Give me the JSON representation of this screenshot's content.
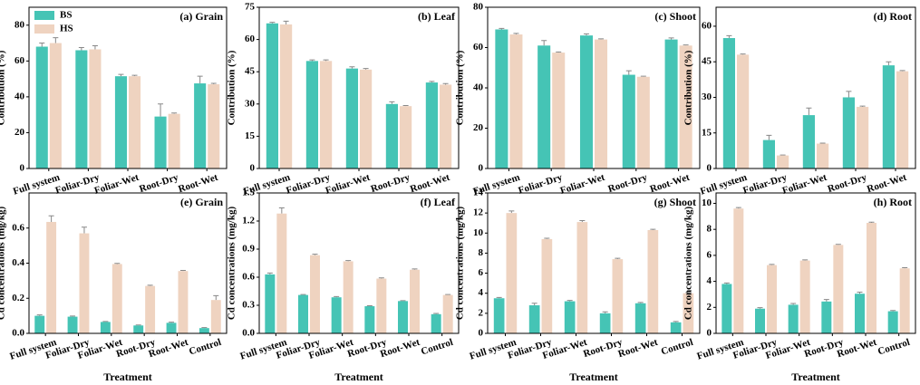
{
  "chart_data": [
    {
      "type": "bar",
      "title": "(a) Grain",
      "y_label": "Contribution (%)",
      "legend": "upper left",
      "categories": [
        "Full system",
        "Foliar-Dry",
        "Foliar-Wet",
        "Root-Dry",
        "Root-Wet"
      ],
      "series": [
        {
          "name": "BS",
          "color": "#45c4b5",
          "values": [
            68,
            66,
            51.5,
            29,
            47.5
          ],
          "errors": [
            2,
            1.5,
            1,
            7,
            4
          ]
        },
        {
          "name": "HS",
          "color": "#efd3c0",
          "values": [
            70,
            66.5,
            51.5,
            30.5,
            47
          ],
          "errors": [
            3,
            2,
            0.5,
            0.5,
            0.5
          ]
        }
      ],
      "ylim": [
        0,
        90
      ],
      "yticks": [
        0,
        20,
        40,
        60,
        80
      ]
    },
    {
      "type": "bar",
      "title": "(b) Leaf",
      "y_label": "Contribution (%)",
      "categories": [
        "Full system",
        "Foliar-Dry",
        "Foliar-Wet",
        "Root-Dry",
        "Root-Wet"
      ],
      "series": [
        {
          "name": "BS",
          "color": "#45c4b5",
          "values": [
            67.5,
            50,
            46.5,
            30,
            40
          ],
          "errors": [
            0.5,
            0.5,
            0.8,
            1,
            0.5
          ]
        },
        {
          "name": "HS",
          "color": "#efd3c0",
          "values": [
            67,
            50,
            46,
            29,
            39
          ],
          "errors": [
            1.5,
            0.5,
            0.5,
            0.3,
            0.5
          ]
        }
      ],
      "ylim": [
        0,
        75
      ],
      "yticks": [
        0,
        15,
        30,
        45,
        60,
        75
      ]
    },
    {
      "type": "bar",
      "title": "(c) Shoot",
      "y_label": "Contribution (%)",
      "categories": [
        "Full system",
        "Foliar-Dry",
        "Foliar-Wet",
        "Root-Dry",
        "Root-Wet"
      ],
      "series": [
        {
          "name": "BS",
          "color": "#45c4b5",
          "values": [
            69,
            61,
            66,
            46.5,
            64
          ],
          "errors": [
            0.5,
            2.5,
            0.8,
            2,
            0.8
          ]
        },
        {
          "name": "HS",
          "color": "#efd3c0",
          "values": [
            66.5,
            57.5,
            64,
            45.5,
            61
          ],
          "errors": [
            0.5,
            0.3,
            0.3,
            0.3,
            0.3
          ]
        }
      ],
      "ylim": [
        0,
        80
      ],
      "yticks": [
        0,
        20,
        40,
        60,
        80
      ]
    },
    {
      "type": "bar",
      "title": "(d) Root",
      "y_label": "Contribution (%)",
      "categories": [
        "Full system",
        "Foliar-Dry",
        "Foliar-Wet",
        "Root-Dry",
        "Root-Wet"
      ],
      "series": [
        {
          "name": "BS",
          "color": "#45c4b5",
          "values": [
            55,
            12,
            22.5,
            30,
            43.5
          ],
          "errors": [
            1,
            2,
            3,
            2.5,
            1.5
          ]
        },
        {
          "name": "HS",
          "color": "#efd3c0",
          "values": [
            48,
            5.5,
            10.5,
            26,
            41
          ],
          "errors": [
            0.3,
            0.2,
            0.2,
            0.3,
            0.3
          ]
        }
      ],
      "ylim": [
        0,
        68
      ],
      "yticks": [
        0,
        15,
        30,
        45,
        60
      ]
    },
    {
      "type": "bar",
      "title": "(e) Grain",
      "y_label": "Cd concentrations (mg/kg)",
      "x_label": "Treatment",
      "categories": [
        "Full system",
        "Foliar-Dry",
        "Foliar-Wet",
        "Root-Dry",
        "Root-Wet",
        "Control"
      ],
      "series": [
        {
          "name": "BS",
          "color": "#45c4b5",
          "values": [
            0.1,
            0.095,
            0.065,
            0.045,
            0.06,
            0.03
          ],
          "errors": [
            0.005,
            0.004,
            0.003,
            0.003,
            0.004,
            0.003
          ]
        },
        {
          "name": "HS",
          "color": "#efd3c0",
          "values": [
            0.635,
            0.57,
            0.395,
            0.27,
            0.355,
            0.19
          ],
          "errors": [
            0.035,
            0.035,
            0.004,
            0.004,
            0.004,
            0.025
          ]
        }
      ],
      "ylim": [
        0,
        0.8
      ],
      "yticks": [
        {
          "value": 0,
          "label": "0.0"
        },
        0.2,
        0.4,
        0.6
      ]
    },
    {
      "type": "bar",
      "title": "(f) Leaf",
      "y_label": "Cd concentrations (mg/kg)",
      "x_label": "Treatment",
      "categories": [
        "Full system",
        "Foliar-Dry",
        "Foliar-Wet",
        "Root-Dry",
        "Root-Wet",
        "Control"
      ],
      "series": [
        {
          "name": "BS",
          "color": "#45c4b5",
          "values": [
            0.63,
            0.41,
            0.385,
            0.29,
            0.345,
            0.205
          ],
          "errors": [
            0.015,
            0.005,
            0.008,
            0.005,
            0.005,
            0.008
          ]
        },
        {
          "name": "HS",
          "color": "#efd3c0",
          "values": [
            1.28,
            0.835,
            0.77,
            0.585,
            0.68,
            0.41
          ],
          "errors": [
            0.06,
            0.01,
            0.008,
            0.008,
            0.008,
            0.005
          ]
        }
      ],
      "ylim": [
        0,
        1.5
      ],
      "yticks": [
        {
          "value": 0,
          "label": "0.0"
        },
        0.3,
        0.6,
        0.9,
        1.2,
        1.5
      ]
    },
    {
      "type": "bar",
      "title": "(g) Shoot",
      "y_label": "Cd concentrations (mg/kg)",
      "x_label": "Treatment",
      "categories": [
        "Full system",
        "Foliar-Dry",
        "Foliar-Wet",
        "Root-Dry",
        "Root-Wet",
        "Control"
      ],
      "series": [
        {
          "name": "BS",
          "color": "#45c4b5",
          "values": [
            3.5,
            2.8,
            3.2,
            2.0,
            3.0,
            1.1
          ],
          "errors": [
            0.08,
            0.2,
            0.08,
            0.15,
            0.08,
            0.08
          ]
        },
        {
          "name": "HS",
          "color": "#efd3c0",
          "values": [
            12,
            9.4,
            11.1,
            7.4,
            10.3,
            4.0
          ],
          "errors": [
            0.2,
            0.08,
            0.15,
            0.08,
            0.08,
            0.08
          ]
        }
      ],
      "ylim": [
        0,
        14
      ],
      "yticks": [
        0,
        2,
        4,
        6,
        8,
        10,
        12,
        14
      ]
    },
    {
      "type": "bar",
      "title": "(h) Root",
      "y_label": "Cd concentrations (mg/kg)",
      "x_label": "Treatment",
      "categories": [
        "Full system",
        "Foliar-Dry",
        "Foliar-Wet",
        "Root-Dry",
        "Root-Wet",
        "Control"
      ],
      "series": [
        {
          "name": "BS",
          "color": "#45c4b5",
          "values": [
            3.8,
            1.9,
            2.2,
            2.45,
            3.05,
            1.7
          ],
          "errors": [
            0.08,
            0.08,
            0.1,
            0.15,
            0.12,
            0.06
          ]
        },
        {
          "name": "HS",
          "color": "#efd3c0",
          "values": [
            9.6,
            5.25,
            5.6,
            6.8,
            8.5,
            5.0
          ],
          "errors": [
            0.08,
            0.05,
            0.05,
            0.05,
            0.05,
            0.05
          ]
        }
      ],
      "ylim": [
        0,
        10.8
      ],
      "yticks": [
        0,
        2,
        4,
        6,
        8,
        10
      ]
    }
  ]
}
